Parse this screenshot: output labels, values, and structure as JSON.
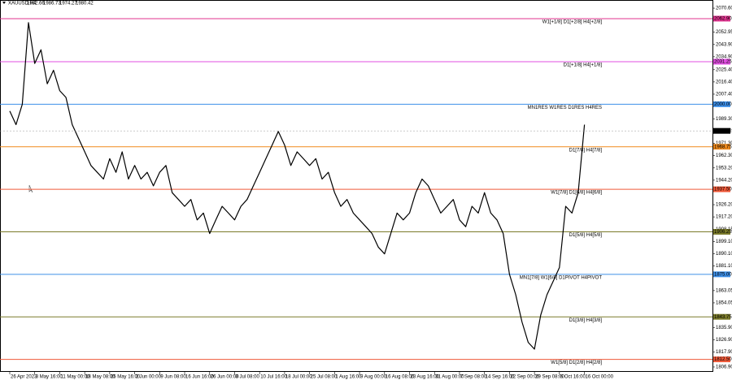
{
  "chart_data": {
    "type": "line",
    "symbol": "XAUUSD,H4",
    "ohlc": [
      1982.66,
      1986.73,
      1974.27,
      1980.42
    ],
    "color": "#000000",
    "categories": [
      "26 Apr 2023",
      null,
      null,
      null,
      "3 May 16:00",
      null,
      null,
      null,
      "11 May 00:00",
      null,
      null,
      null,
      "18 May 08:00",
      null,
      null,
      null,
      "25 May 16:00",
      null,
      null,
      null,
      "2 Jun 00:00",
      null,
      null,
      null,
      "9 Jun 08:00",
      null,
      null,
      null,
      "16 Jun 16:00",
      null,
      null,
      null,
      "26 Jun 00:00",
      null,
      null,
      null,
      "3 Jul 08:00",
      null,
      null,
      null,
      "10 Jul 16:00",
      null,
      null,
      null,
      "18 Jul 00:00",
      null,
      null,
      null,
      "25 Jul 08:00",
      null,
      null,
      null,
      "1 Aug 16:00",
      null,
      null,
      null,
      "9 Aug 00:00",
      null,
      null,
      null,
      "16 Aug 08:00",
      null,
      null,
      null,
      "23 Aug 16:00",
      null,
      null,
      null,
      "31 Aug 00:00",
      null,
      null,
      null,
      "7 Sep 08:00",
      null,
      null,
      null,
      "14 Sep 16:00",
      null,
      null,
      null,
      "22 Sep 00:00",
      null,
      null,
      null,
      "29 Sep 08:00",
      null,
      null,
      null,
      "6 Oct 16:00",
      null,
      null,
      null,
      "16 Oct 00:00"
    ],
    "values": [
      1995,
      1985,
      2000,
      2060,
      2030,
      2040,
      2015,
      2025,
      2010,
      2005,
      1985,
      1975,
      1965,
      1955,
      1950,
      1945,
      1960,
      1950,
      1965,
      1945,
      1955,
      1945,
      1950,
      1940,
      1950,
      1955,
      1935,
      1930,
      1925,
      1930,
      1915,
      1920,
      1905,
      1915,
      1925,
      1920,
      1915,
      1925,
      1930,
      1940,
      1950,
      1960,
      1970,
      1980,
      1970,
      1955,
      1965,
      1960,
      1955,
      1960,
      1945,
      1950,
      1935,
      1925,
      1930,
      1920,
      1915,
      1910,
      1905,
      1895,
      1890,
      1905,
      1920,
      1915,
      1920,
      1935,
      1945,
      1940,
      1930,
      1920,
      1925,
      1930,
      1915,
      1910,
      1925,
      1920,
      1935,
      1920,
      1915,
      1905,
      1875,
      1860,
      1840,
      1825,
      1820,
      1845,
      1860,
      1870,
      1880,
      1925,
      1920,
      1935,
      1985
    ],
    "ylim": [
      1803.3,
      2076.6
    ],
    "yticks": [
      {
        "value": 2070.6,
        "label": "2070.60"
      },
      {
        "value": 2052.95,
        "label": "2052.95"
      },
      {
        "value": 2043.9,
        "label": "2043.90"
      },
      {
        "value": 2034.9,
        "label": "2034.90"
      },
      {
        "value": 2025.4,
        "label": "2025.40"
      },
      {
        "value": 2016.4,
        "label": "2016.40"
      },
      {
        "value": 2007.4,
        "label": "2007.40"
      },
      {
        "value": 1989.3,
        "label": "1989.30"
      },
      {
        "value": 1971.3,
        "label": "1971.30"
      },
      {
        "value": 1962.3,
        "label": "1962.30"
      },
      {
        "value": 1953.2,
        "label": "1953.20"
      },
      {
        "value": 1944.2,
        "label": "1944.20"
      },
      {
        "value": 1926.2,
        "label": "1926.20"
      },
      {
        "value": 1917.2,
        "label": "1917.20"
      },
      {
        "value": 1908.15,
        "label": "1908.15"
      },
      {
        "value": 1899.1,
        "label": "1899.10"
      },
      {
        "value": 1890.1,
        "label": "1890.10"
      },
      {
        "value": 1881.1,
        "label": "1881.10"
      },
      {
        "value": 1863.05,
        "label": "1863.05"
      },
      {
        "value": 1854.05,
        "label": "1854.05"
      },
      {
        "value": 1835.9,
        "label": "1835.90"
      },
      {
        "value": 1826.9,
        "label": "1826.90"
      },
      {
        "value": 1817.9,
        "label": "1817.90"
      },
      {
        "value": 1806.9,
        "label": "1806.90"
      }
    ],
    "levels": {
      "values": [
        2062.9,
        2031.25,
        2000,
        1968.75,
        1937.5,
        1906.25,
        1875,
        1843.75,
        1812.5
      ],
      "value_labels": [
        "2062.90",
        "2031.25",
        "2000.00",
        "1968.75",
        "1937.50",
        "1906.25",
        "1875.00",
        "1843.75",
        "1812.50"
      ],
      "labels": [
        "W1[+1/8] D1[+2/8] H4[+2/8]",
        "D1[+1/8] H4[+1/8]",
        "MN1RES W1RES D1RES H4RES",
        "D1[7/8] H4[7/8]",
        "W1[7/8] D1[6/8] H4[6/8]",
        "D1[5/8] H4[5/8]",
        "MN1[7/8] W1[6/8] D1PIVOT H4PIVOT",
        "D1[3/8] H4[3/8]",
        "W1[5/8] D1[2/8] H4[2/8]"
      ],
      "colors": [
        "#e0338f",
        "#e24fe2",
        "#3d8fe8",
        "#f08a1c",
        "#ef5a3a",
        "#7a7a2a",
        "#3d8fe8",
        "#7a7a2a",
        "#ef5a3a"
      ]
    },
    "last_price": 1980.42
  }
}
